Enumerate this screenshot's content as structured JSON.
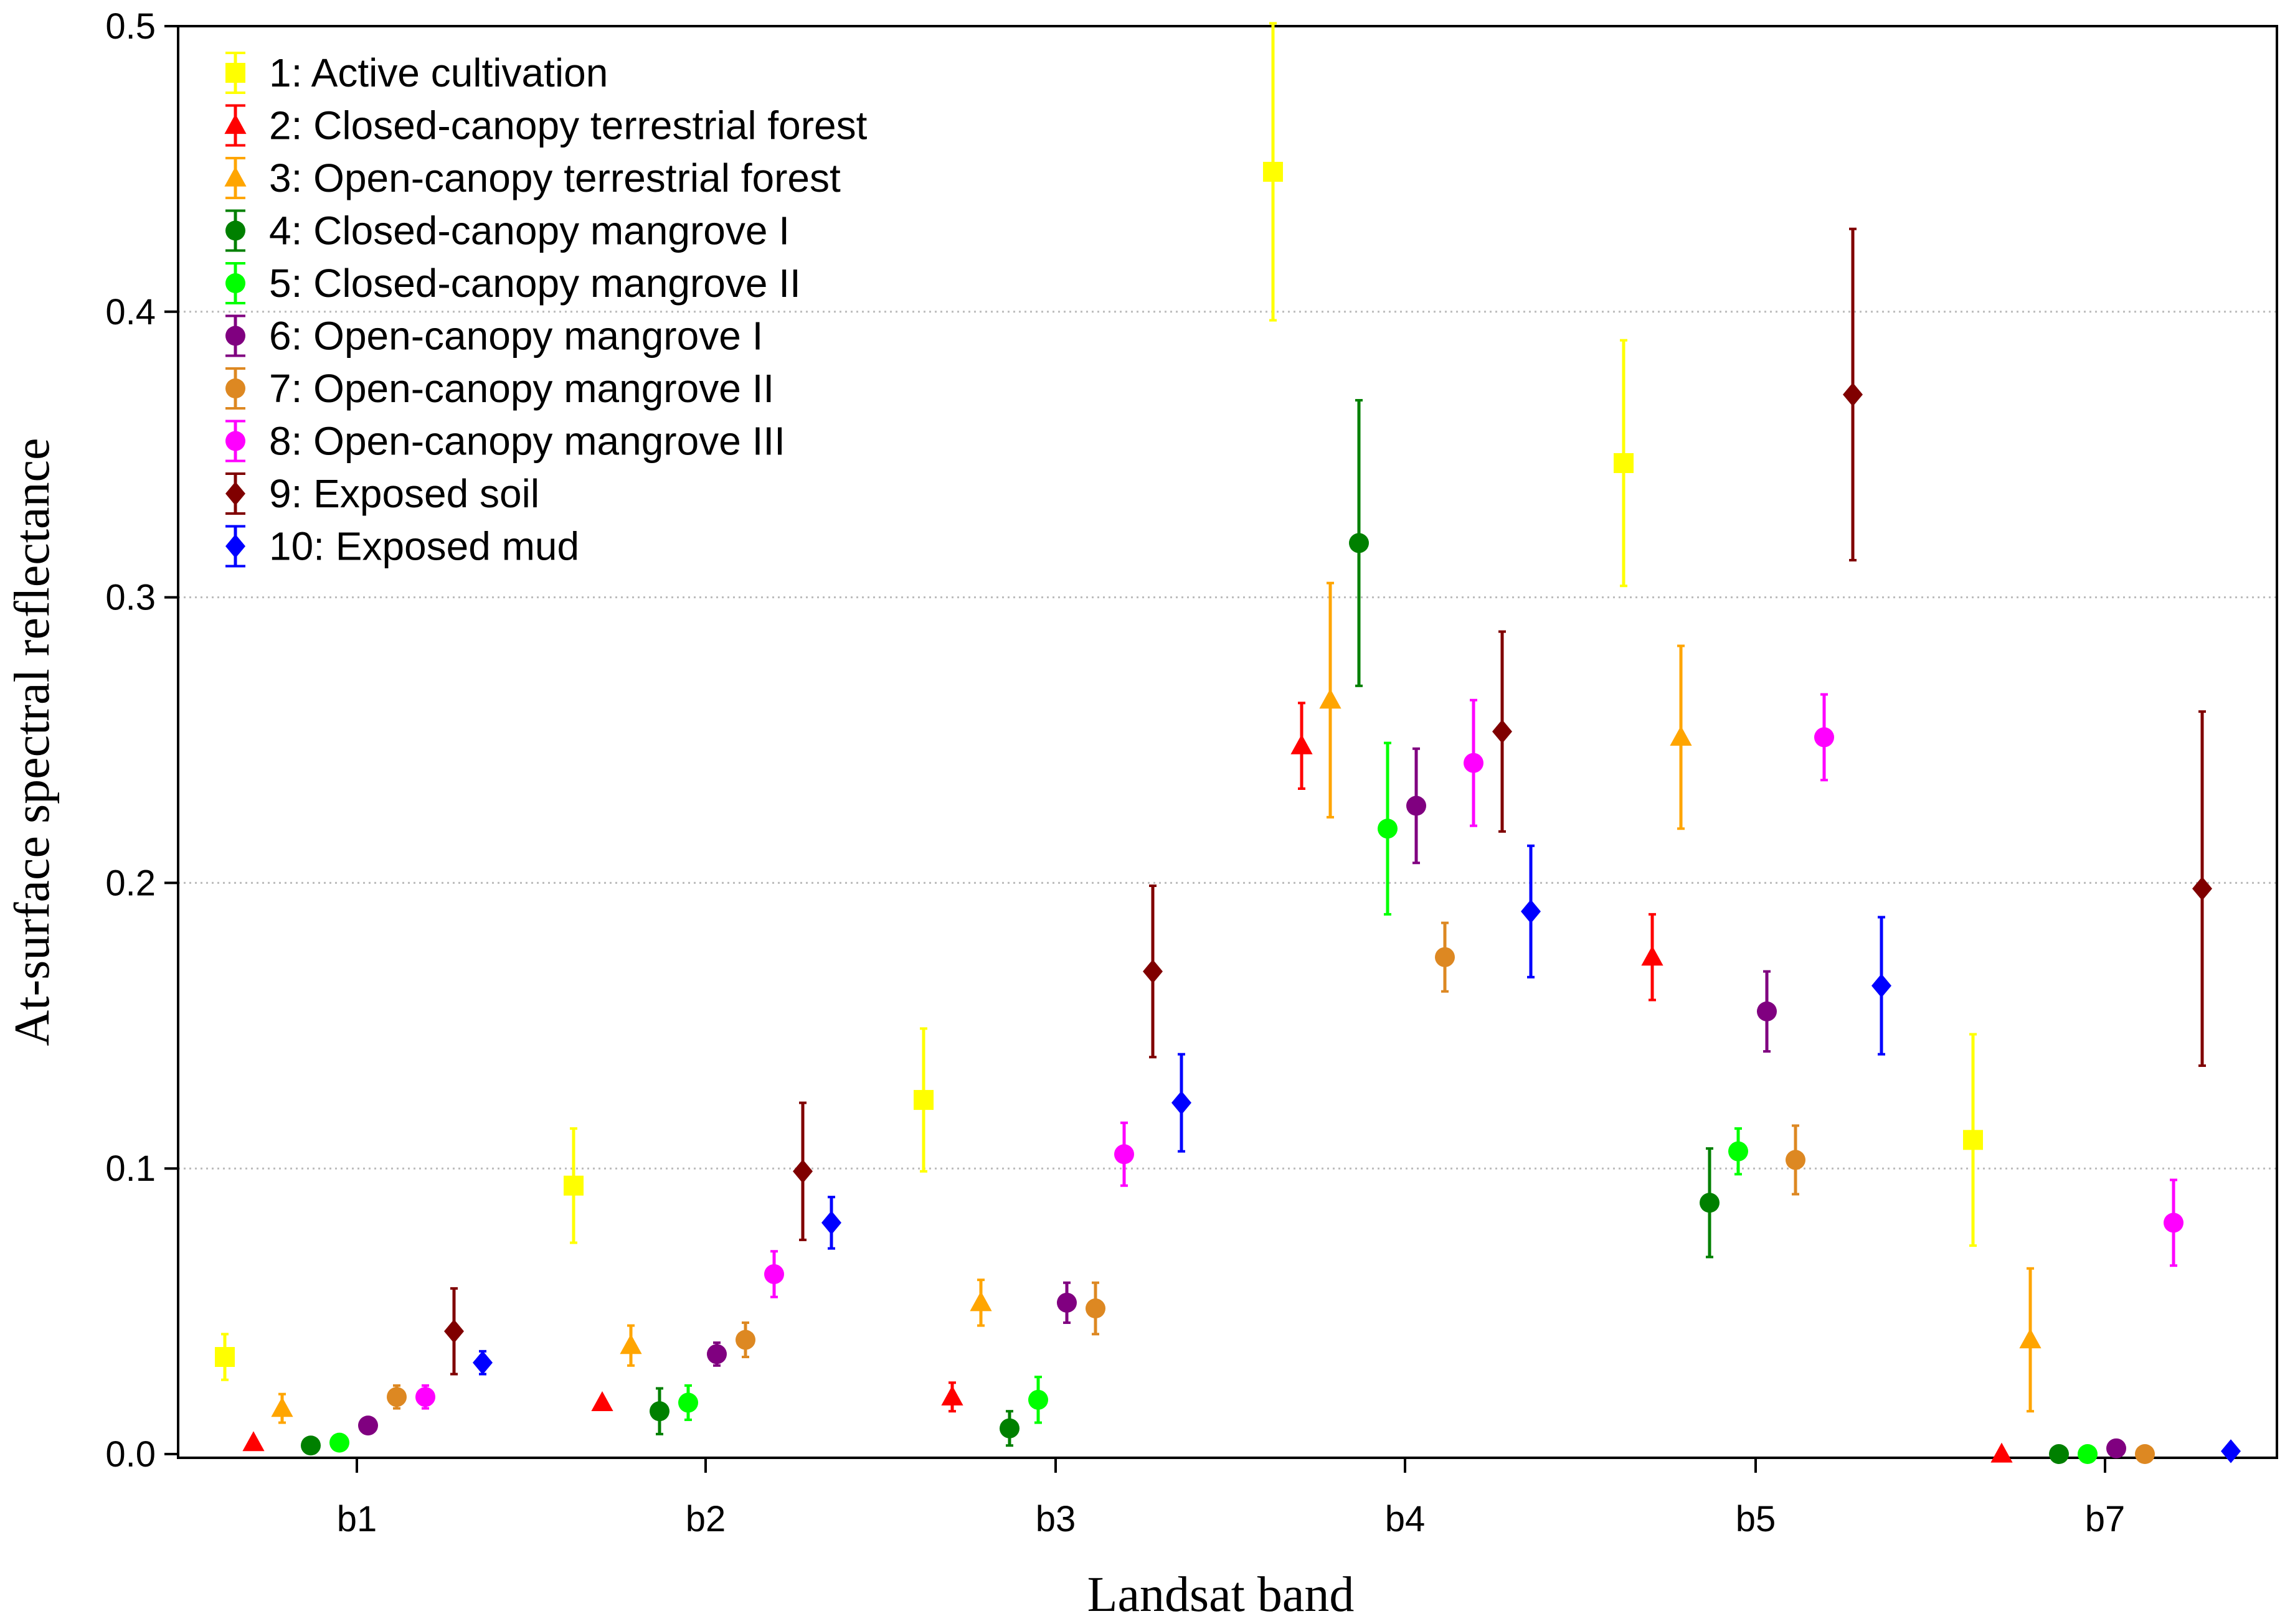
{
  "chart_data": {
    "type": "scatter",
    "subtype": "mean-with-error-bars",
    "title": "",
    "xlabel": "Landsat band",
    "ylabel": "At-surface spectral reflectance",
    "categories": [
      "b1",
      "b2",
      "b3",
      "b4",
      "b5",
      "b7"
    ],
    "ylim": [
      0,
      0.5
    ],
    "yticks": [
      "0.0",
      "0.1",
      "0.2",
      "0.3",
      "0.4",
      "0.5"
    ],
    "grid": "horizontal dotted",
    "legend_position": "top-left",
    "series": [
      {
        "name": "1: Active cultivation",
        "color": "#FFFF00",
        "marker": "square",
        "values": [
          0.034,
          0.094,
          0.124,
          0.449,
          0.347,
          0.11
        ],
        "err": [
          0.008,
          0.02,
          0.025,
          0.052,
          0.043,
          0.037
        ]
      },
      {
        "name": "2: Closed-canopy terrestrial forest",
        "color": "#FF0000",
        "marker": "triangle",
        "values": [
          0.004,
          0.018,
          0.02,
          0.248,
          0.174,
          0.0
        ],
        "err": [
          0.0,
          0.0,
          0.005,
          0.015,
          0.015,
          0.0
        ]
      },
      {
        "name": "3: Open-canopy terrestrial forest",
        "color": "#FFA500",
        "marker": "triangle",
        "values": [
          0.016,
          0.038,
          0.053,
          0.264,
          0.251,
          0.04
        ],
        "err": [
          0.005,
          0.007,
          0.008,
          0.041,
          0.032,
          0.025
        ]
      },
      {
        "name": "4: Closed-canopy mangrove I",
        "color": "#008000",
        "marker": "circle",
        "values": [
          0.003,
          0.015,
          0.009,
          0.319,
          0.088,
          0.0
        ],
        "err": [
          0.0,
          0.008,
          0.006,
          0.05,
          0.019,
          0.0
        ]
      },
      {
        "name": "5: Closed-canopy mangrove II",
        "color": "#00FF00",
        "marker": "circle",
        "values": [
          0.004,
          0.018,
          0.019,
          0.219,
          0.106,
          0.0
        ],
        "err": [
          0.0,
          0.006,
          0.008,
          0.03,
          0.008,
          0.0
        ]
      },
      {
        "name": "6: Open-canopy mangrove I",
        "color": "#800080",
        "marker": "circle",
        "values": [
          0.01,
          0.035,
          0.053,
          0.227,
          0.155,
          0.002
        ],
        "err": [
          0.0,
          0.004,
          0.007,
          0.02,
          0.014,
          0.0
        ]
      },
      {
        "name": "7: Open-canopy mangrove II",
        "color": "#DD8822",
        "marker": "circle",
        "values": [
          0.02,
          0.04,
          0.051,
          0.174,
          0.103,
          0.0
        ],
        "err": [
          0.004,
          0.006,
          0.009,
          0.012,
          0.012,
          0.0
        ]
      },
      {
        "name": "8: Open-canopy mangrove III",
        "color": "#FF00FF",
        "marker": "circle",
        "values": [
          0.02,
          0.063,
          0.105,
          0.242,
          0.251,
          0.081
        ],
        "err": [
          0.004,
          0.008,
          0.011,
          0.022,
          0.015,
          0.015
        ]
      },
      {
        "name": "9: Exposed soil",
        "color": "#800000",
        "marker": "diamond",
        "values": [
          0.043,
          0.099,
          0.169,
          0.253,
          0.371,
          0.198
        ],
        "err": [
          0.015,
          0.024,
          0.03,
          0.035,
          0.058,
          0.062
        ]
      },
      {
        "name": "10: Exposed mud",
        "color": "#0000FF",
        "marker": "diamond",
        "values": [
          0.032,
          0.081,
          0.123,
          0.19,
          0.164,
          0.001
        ],
        "err": [
          0.004,
          0.009,
          0.017,
          0.023,
          0.024,
          0.0
        ]
      }
    ]
  }
}
